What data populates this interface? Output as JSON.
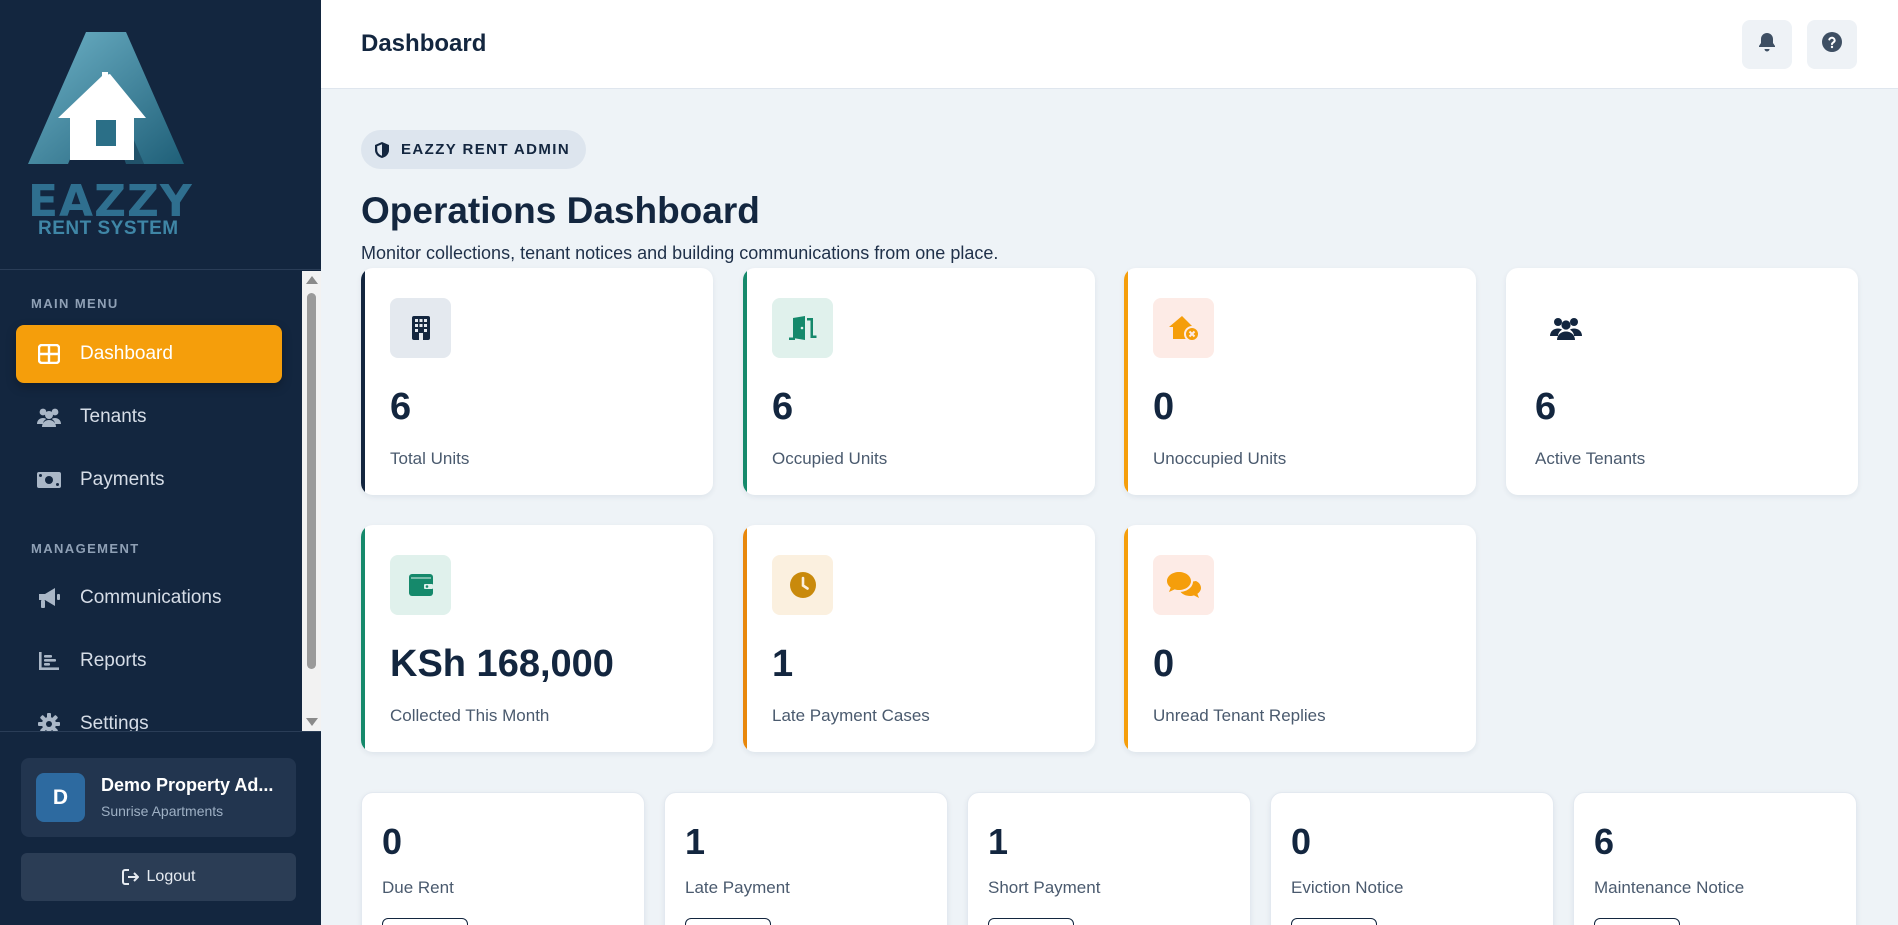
{
  "brand": {
    "logo_line1": "EAZZY",
    "logo_line2": "RENT SYSTEM"
  },
  "header": {
    "title": "Dashboard",
    "icons": [
      "bell-icon",
      "help-icon"
    ]
  },
  "sidebar": {
    "main_menu_label": "MAIN MENU",
    "management_label": "MANAGEMENT",
    "items": [
      {
        "label": "Dashboard",
        "icon": "dashboard-grid-icon",
        "active": true
      },
      {
        "label": "Tenants",
        "icon": "users-icon",
        "active": false
      },
      {
        "label": "Payments",
        "icon": "money-icon",
        "active": false
      },
      {
        "label": "Communications",
        "icon": "megaphone-icon",
        "active": false
      },
      {
        "label": "Reports",
        "icon": "chart-icon",
        "active": false
      },
      {
        "label": "Settings",
        "icon": "gear-icon",
        "active": false
      }
    ],
    "user": {
      "initial": "D",
      "name": "Demo Property Ad...",
      "subtitle": "Sunrise Apartments"
    },
    "logout_label": "Logout"
  },
  "main": {
    "badge": "EAZZY RENT ADMIN",
    "title": "Operations Dashboard",
    "subtitle": "Monitor collections, tenant notices and building communications from one place.",
    "stats": [
      {
        "value": "6",
        "label": "Total Units",
        "icon": "building-icon",
        "accent": "#13263f"
      },
      {
        "value": "6",
        "label": "Occupied Units",
        "icon": "door-open-icon",
        "accent": "#15896b"
      },
      {
        "value": "0",
        "label": "Unoccupied Units",
        "icon": "house-x-icon",
        "accent": "#f59e0b"
      },
      {
        "value": "6",
        "label": "Active Tenants",
        "icon": "users-icon",
        "accent": ""
      },
      {
        "value": "KSh 168,000",
        "label": "Collected This Month",
        "icon": "wallet-icon",
        "accent": "#15896b"
      },
      {
        "value": "1",
        "label": "Late Payment Cases",
        "icon": "clock-icon",
        "accent": "#e8870b"
      },
      {
        "value": "0",
        "label": "Unread Tenant Replies",
        "icon": "chat-icon",
        "accent": "#f59e0b"
      }
    ],
    "notices": [
      {
        "value": "0",
        "label": "Due Rent"
      },
      {
        "value": "1",
        "label": "Late Payment"
      },
      {
        "value": "1",
        "label": "Short Payment"
      },
      {
        "value": "0",
        "label": "Eviction Notice"
      },
      {
        "value": "6",
        "label": "Maintenance Notice"
      }
    ]
  },
  "colors": {
    "sidebar_bg": "#13263f",
    "active": "#f59e0b",
    "page_bg": "#eef3f7"
  }
}
